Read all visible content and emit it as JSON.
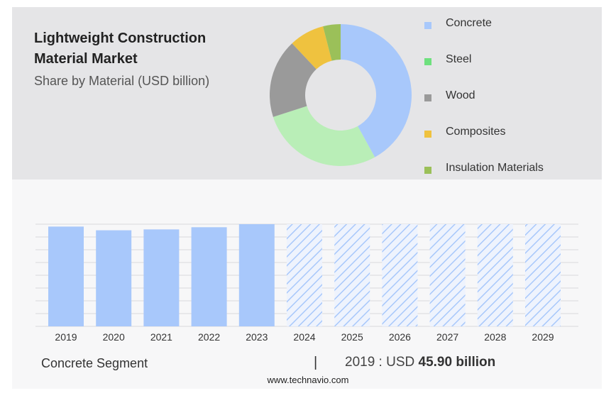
{
  "title": "Lightweight Construction Material Market",
  "subtitle": "Share by Material (USD billion)",
  "colors": {
    "concrete": "#a8c8fb",
    "steel": "#b9eeb7",
    "wood": "#9a9a9a",
    "composites": "#efc23f",
    "insulation": "#9bc059",
    "bar": "#a8c8fb",
    "hatch": "#a8c8fb"
  },
  "legend": [
    {
      "label": "Concrete",
      "color": "#a8c8fb"
    },
    {
      "label": "Steel",
      "color": "#6ee07e"
    },
    {
      "label": "Wood",
      "color": "#9a9a9a"
    },
    {
      "label": "Composites",
      "color": "#efc23f"
    },
    {
      "label": "Insulation Materials",
      "color": "#9bc059"
    }
  ],
  "footer": {
    "segment": "Concrete Segment",
    "separator": "|",
    "year_value_prefix": "2019 : USD",
    "year_value": "45.90 billion"
  },
  "source": "www.technavio.com",
  "chart_data": [
    {
      "type": "pie",
      "donut": true,
      "categories": [
        "Concrete",
        "Steel",
        "Wood",
        "Composites",
        "Insulation Materials"
      ],
      "values": [
        42,
        28,
        18,
        8,
        4
      ],
      "colors": [
        "#a8c8fb",
        "#b9eeb7",
        "#9a9a9a",
        "#efc23f",
        "#9bc059"
      ]
    },
    {
      "type": "bar",
      "categories": [
        "2019",
        "2020",
        "2021",
        "2022",
        "2023",
        "2024",
        "2025",
        "2026",
        "2027",
        "2028",
        "2029"
      ],
      "values": [
        45.9,
        44.2,
        44.6,
        45.6,
        47.0,
        null,
        null,
        null,
        null,
        null,
        null
      ],
      "forecast_hatched": [
        "2024",
        "2025",
        "2026",
        "2027",
        "2028",
        "2029"
      ],
      "ylim": [
        0,
        47.0
      ],
      "grid": true,
      "series": [
        {
          "name": "Concrete Segment",
          "values": [
            45.9,
            44.2,
            44.6,
            45.6,
            47.0,
            null,
            null,
            null,
            null,
            null,
            null
          ]
        }
      ]
    }
  ]
}
